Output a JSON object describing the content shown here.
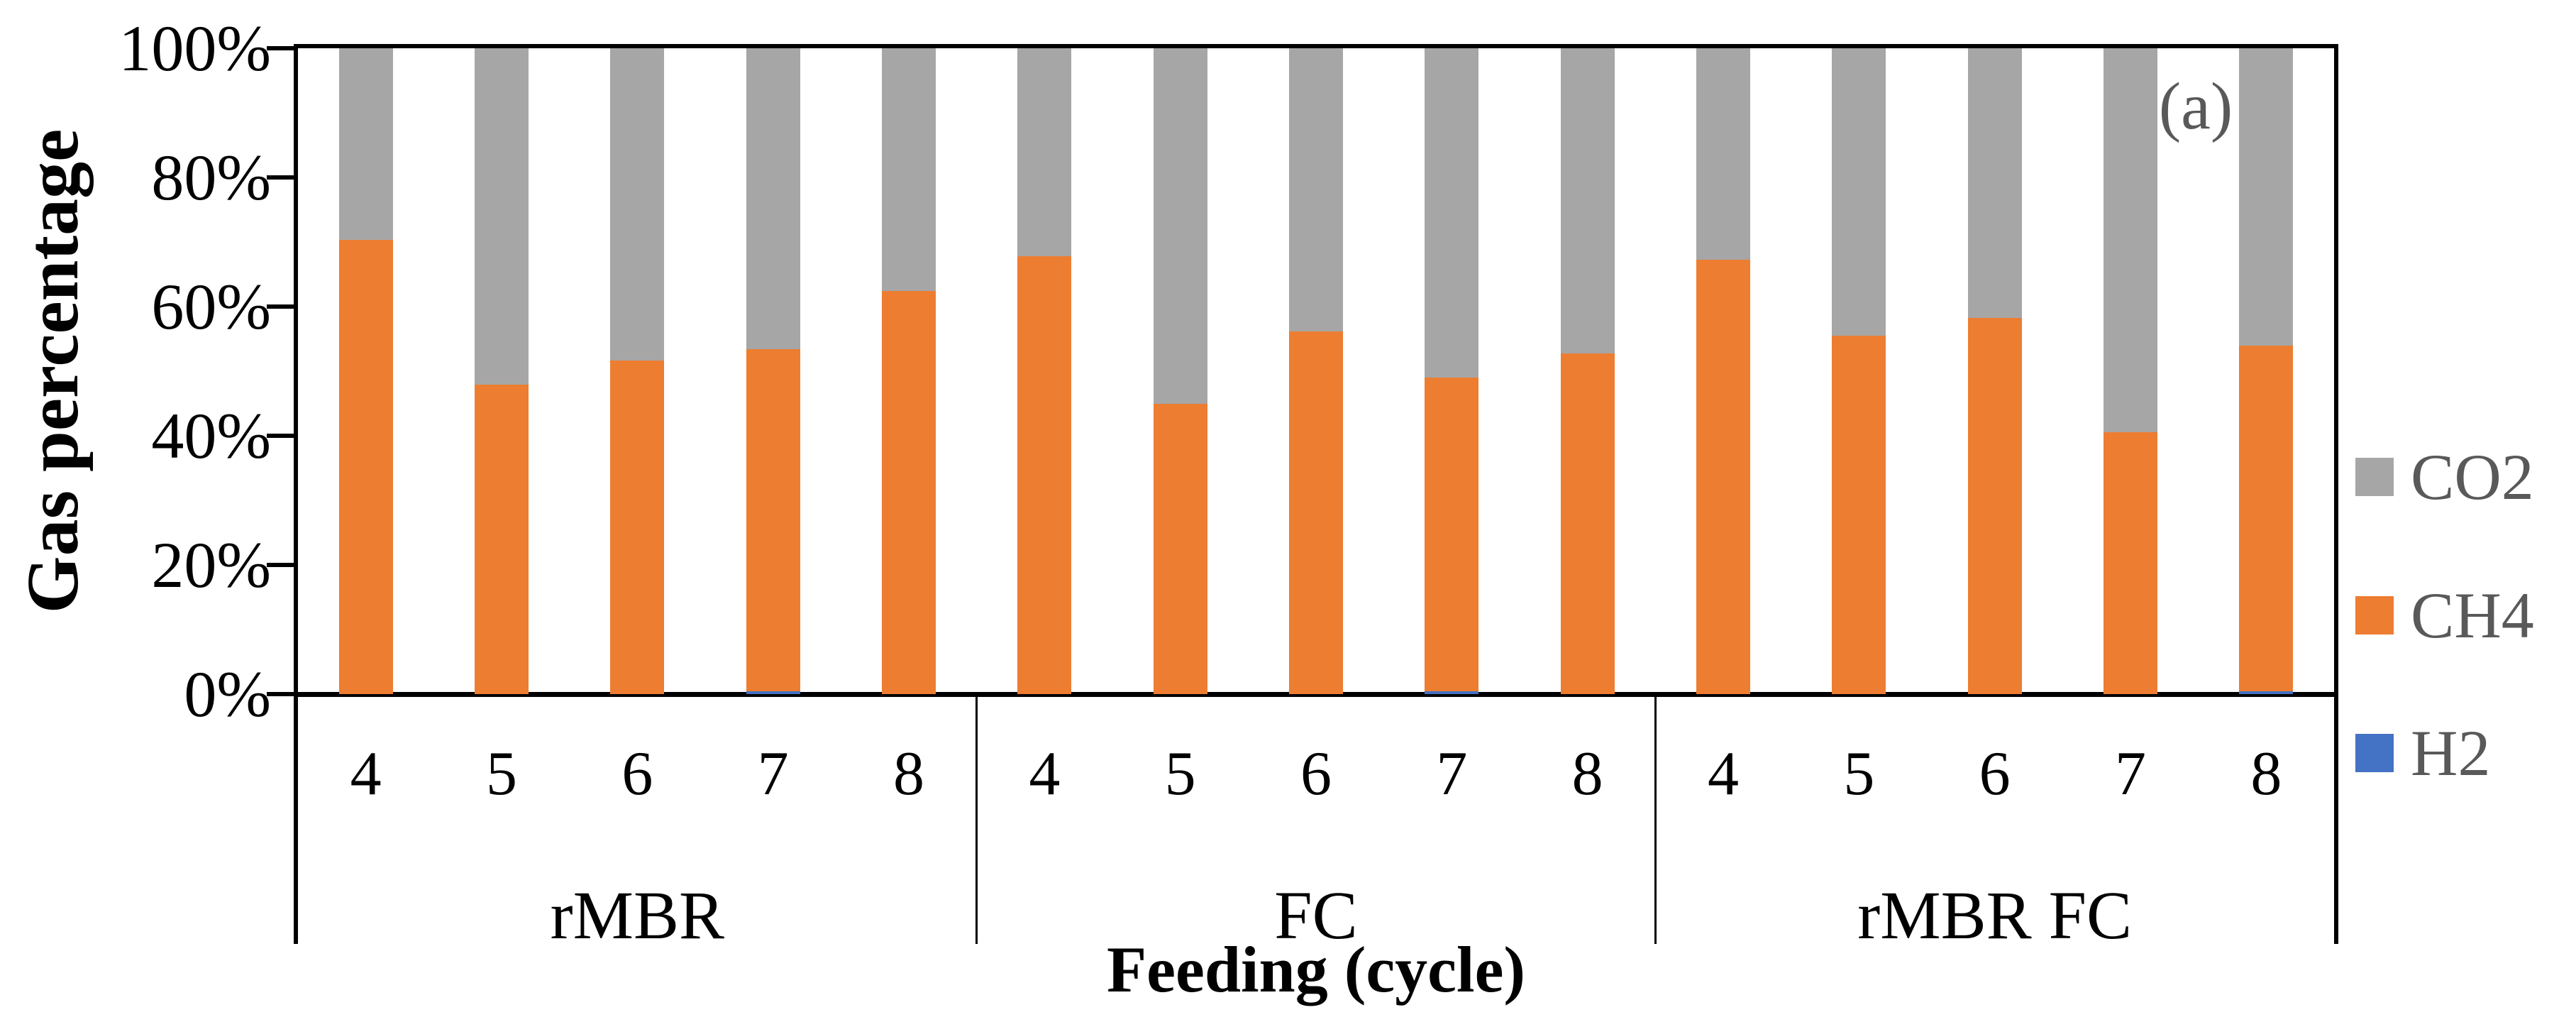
{
  "chart_data": {
    "type": "bar",
    "stacked": true,
    "units": "percent",
    "title": "",
    "xlabel": "Feeding (cycle)",
    "ylabel": "Gas percentage",
    "annotation": "(a)",
    "ylim": [
      0,
      100
    ],
    "ytick_labels": [
      "0%",
      "20%",
      "40%",
      "60%",
      "80%",
      "100%"
    ],
    "grid": false,
    "groups": [
      {
        "label": "rMBR",
        "cycles": [
          "4",
          "5",
          "6",
          "7",
          "8"
        ]
      },
      {
        "label": "FC",
        "cycles": [
          "4",
          "5",
          "6",
          "7",
          "8"
        ]
      },
      {
        "label": "rMBR FC",
        "cycles": [
          "4",
          "5",
          "6",
          "7",
          "8"
        ]
      }
    ],
    "series": [
      {
        "name": "H2",
        "color": "#4472C4",
        "values": [
          0,
          0,
          0,
          0.4,
          0,
          0,
          0,
          0,
          0.4,
          0,
          0,
          0,
          0,
          0,
          0.4
        ]
      },
      {
        "name": "CH4",
        "color": "#ED7D31",
        "values": [
          70.3,
          47.9,
          51.6,
          53.0,
          62.4,
          67.8,
          44.9,
          56.2,
          48.6,
          52.7,
          67.2,
          55.5,
          58.2,
          40.5,
          53.6
        ]
      },
      {
        "name": "CO2",
        "color": "#A6A6A6",
        "values": [
          29.7,
          52.1,
          48.4,
          46.6,
          37.6,
          32.2,
          55.1,
          43.8,
          51.0,
          47.3,
          32.8,
          44.5,
          41.8,
          59.5,
          46.0
        ]
      }
    ],
    "legend": {
      "position": "right",
      "items": [
        {
          "label": "CO2",
          "color": "#A6A6A6"
        },
        {
          "label": "CH4",
          "color": "#ED7D31"
        },
        {
          "label": "H2",
          "color": "#4472C4"
        }
      ]
    },
    "text_colors": {
      "axis_text": "#000000",
      "legend_text": "#595959",
      "annotation_text": "#595959"
    }
  }
}
